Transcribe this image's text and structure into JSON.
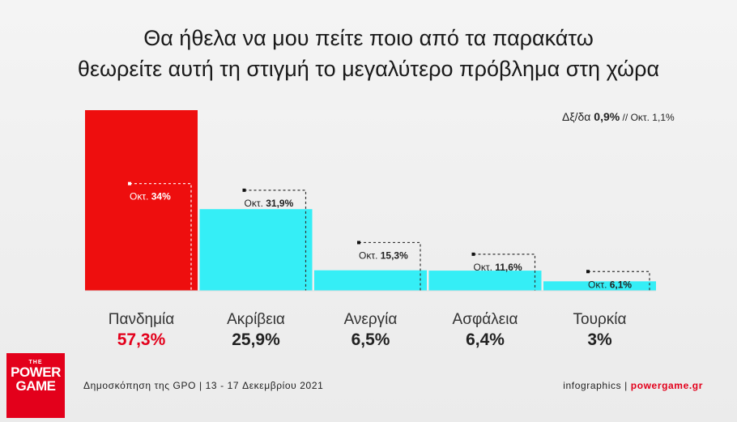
{
  "title": {
    "line1": "Θα ήθελα να μου πείτε ποιο από τα παρακάτω",
    "line2": "θεωρείτε αυτή τη στιγμή το μεγαλύτερο πρόβλημα στη χώρα"
  },
  "margin_note": {
    "label": "Δξ/δα ",
    "current": "0,9%",
    "sep": " // ",
    "previous": "Οκτ. 1,1%"
  },
  "chart_data": {
    "type": "bar",
    "categories": [
      "Πανδημία",
      "Ακρίβεια",
      "Ανεργία",
      "Ασφάλεια",
      "Τουρκία"
    ],
    "values": [
      57.3,
      25.9,
      6.5,
      6.4,
      3
    ],
    "value_labels": [
      "57,3%",
      "25,9%",
      "6,5%",
      "6,4%",
      "3%"
    ],
    "previous_values": [
      34,
      31.9,
      15.3,
      11.6,
      6.1
    ],
    "previous_labels": [
      "Οκτ. 34%",
      "Οκτ. 31,9%",
      "Οκτ. 15,3%",
      "Οκτ. 11,6%",
      "Οκτ. 6,1%"
    ],
    "colors": [
      "#ee0e0e",
      "#35eef6",
      "#35eef6",
      "#35eef6",
      "#35eef6"
    ],
    "highlight_value_color": "#e3001b",
    "ylim": [
      0,
      57.3
    ],
    "grid": false,
    "legend": "none"
  },
  "footer": {
    "left": "Δημοσκόπηση της GPO | 13 - 17 Δεκεμβρίου 2021",
    "right_prefix": "infographics | ",
    "right_site": "powergame.gr"
  },
  "logo": {
    "the": "THE",
    "line1": "POWER",
    "line2": "GAME"
  }
}
